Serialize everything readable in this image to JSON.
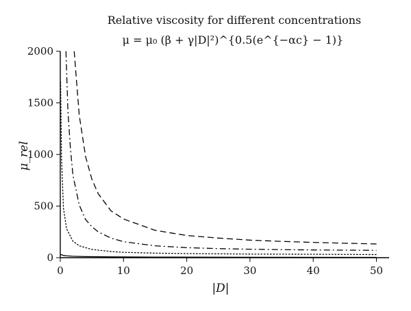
{
  "chart_data": {
    "type": "line",
    "title": "Relative viscosity for different concentrations",
    "subtitle": "μ = μ₀ (β + γ|D|²)^{0.5(e^{−αc} − 1)}",
    "xlabel": "|D|",
    "ylabel": "μ_rel",
    "xlim": [
      0,
      52
    ],
    "ylim": [
      0,
      2000
    ],
    "x_ticks": [
      0,
      10,
      20,
      30,
      40,
      50
    ],
    "y_ticks": [
      0,
      500,
      1000,
      1500,
      2000
    ],
    "grid": false,
    "series": [
      {
        "style": "dashed",
        "x": [
          2.2,
          3,
          4,
          5,
          6,
          8,
          10,
          15,
          20,
          25,
          30,
          35,
          40,
          45,
          50
        ],
        "y": [
          2000,
          1380,
          980,
          760,
          620,
          455,
          375,
          265,
          215,
          190,
          170,
          158,
          148,
          140,
          133
        ]
      },
      {
        "style": "dashdot",
        "x": [
          0.9,
          1.2,
          1.6,
          2,
          3,
          4,
          5,
          6,
          8,
          10,
          15,
          20,
          25,
          30,
          35,
          40,
          45,
          50
        ],
        "y": [
          2000,
          1430,
          1060,
          800,
          510,
          370,
          300,
          250,
          190,
          155,
          115,
          97,
          88,
          82,
          78,
          75,
          73,
          71
        ]
      },
      {
        "style": "dotted",
        "x": [
          0.05,
          0.2,
          0.5,
          1,
          2,
          3,
          5,
          8,
          10,
          15,
          20,
          30,
          40,
          50
        ],
        "y": [
          1700,
          950,
          480,
          280,
          160,
          115,
          80,
          60,
          52,
          44,
          40,
          35,
          33,
          30
        ]
      },
      {
        "style": "solid",
        "x": [
          0,
          0.5,
          1,
          2,
          4,
          8,
          15,
          25,
          35,
          50
        ],
        "y": [
          32,
          22,
          18,
          14,
          11,
          8,
          6,
          5,
          4,
          3
        ]
      }
    ]
  }
}
